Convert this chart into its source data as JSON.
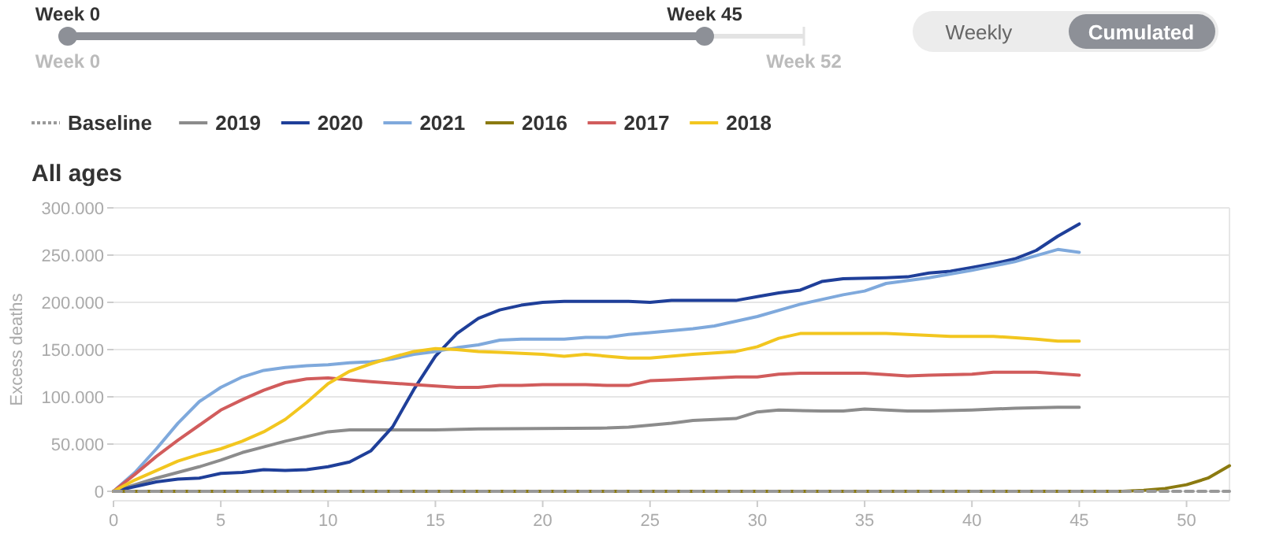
{
  "chart_data": {
    "type": "line",
    "title": "All ages",
    "ylabel": "Excess deaths",
    "annotations": [
      "Week 0",
      "Week 45",
      "Week 0",
      "Week 52",
      "Weekly",
      "Cumulated"
    ],
    "xlim": [
      0,
      52
    ],
    "xticks": [
      0,
      5,
      10,
      15,
      20,
      25,
      30,
      35,
      40,
      45,
      50
    ],
    "ylim": [
      0,
      300000
    ],
    "yticks": [
      {
        "value": 0,
        "label": "0"
      },
      {
        "value": 50000,
        "label": "50.000"
      },
      {
        "value": 100000,
        "label": "100.000"
      },
      {
        "value": 150000,
        "label": "150.000"
      },
      {
        "value": 200000,
        "label": "200.000"
      },
      {
        "value": 250000,
        "label": "250.000"
      },
      {
        "value": 300000,
        "label": "300.000"
      }
    ],
    "grid": "y",
    "legend": "top left",
    "marker": "none",
    "series": [
      {
        "name": "Baseline",
        "color": "#999999",
        "line_style": "dashed",
        "x": [
          0,
          52
        ],
        "values": [
          0,
          0
        ]
      },
      {
        "name": "2019",
        "color": "#8c8c8c",
        "x": [
          0,
          1,
          2,
          3,
          4,
          5,
          6,
          7,
          8,
          9,
          10,
          11,
          15,
          17,
          23,
          24,
          25,
          26,
          27,
          29,
          30,
          31,
          33,
          34,
          35,
          37,
          38,
          40,
          42,
          44,
          45
        ],
        "values": [
          0,
          7000,
          14000,
          20000,
          26000,
          33000,
          41000,
          47000,
          53000,
          58000,
          63000,
          65000,
          65000,
          66000,
          67000,
          68000,
          70000,
          72000,
          75000,
          77000,
          84000,
          86000,
          85000,
          85000,
          87000,
          85000,
          85000,
          86000,
          88000,
          89000,
          89000
        ]
      },
      {
        "name": "2020",
        "color": "#1f3f99",
        "x": [
          0,
          1,
          2,
          3,
          4,
          5,
          6,
          7,
          8,
          9,
          10,
          11,
          12,
          13,
          14,
          15,
          16,
          17,
          18,
          19,
          20,
          21,
          22,
          23,
          24,
          25,
          26,
          29,
          30,
          31,
          32,
          33,
          34,
          36,
          37,
          38,
          39,
          40,
          41,
          42,
          43,
          44,
          45
        ],
        "values": [
          0,
          5000,
          10000,
          13000,
          14000,
          19000,
          20000,
          23000,
          22000,
          23000,
          26000,
          31000,
          43000,
          68000,
          108000,
          143000,
          167000,
          183000,
          192000,
          197000,
          200000,
          201000,
          201000,
          201000,
          201000,
          200000,
          202000,
          202000,
          206000,
          210000,
          213000,
          222000,
          225000,
          226000,
          227000,
          231000,
          233000,
          237000,
          241000,
          246000,
          255000,
          270000,
          283000
        ]
      },
      {
        "name": "2021",
        "color": "#7fa9dc",
        "x": [
          0,
          1,
          2,
          3,
          4,
          5,
          6,
          7,
          8,
          9,
          10,
          11,
          12,
          13,
          14,
          15,
          16,
          17,
          18,
          19,
          21,
          22,
          23,
          24,
          25,
          27,
          28,
          29,
          30,
          32,
          34,
          35,
          36,
          38,
          40,
          42,
          44,
          45
        ],
        "values": [
          0,
          20000,
          45000,
          72000,
          95000,
          110000,
          121000,
          128000,
          131000,
          133000,
          134000,
          136000,
          137000,
          140000,
          145000,
          148000,
          152000,
          155000,
          160000,
          161000,
          161000,
          163000,
          163000,
          166000,
          168000,
          172000,
          175000,
          180000,
          185000,
          198000,
          208000,
          212000,
          220000,
          226000,
          234000,
          243000,
          256000,
          253000
        ]
      },
      {
        "name": "2016",
        "color": "#8b7a10",
        "x": [
          0,
          47,
          48,
          49,
          50,
          51,
          52
        ],
        "values": [
          0,
          0,
          1000,
          3000,
          7000,
          14000,
          27000
        ]
      },
      {
        "name": "2017",
        "color": "#d15c5c",
        "x": [
          0,
          1,
          2,
          3,
          4,
          5,
          6,
          7,
          8,
          9,
          10,
          11,
          12,
          14,
          16,
          17,
          18,
          19,
          20,
          22,
          23,
          24,
          25,
          26,
          28,
          29,
          30,
          31,
          32,
          35,
          37,
          38,
          40,
          41,
          43,
          45
        ],
        "values": [
          0,
          18000,
          37000,
          54000,
          70000,
          86000,
          97000,
          107000,
          115000,
          119000,
          120000,
          118000,
          116000,
          113000,
          110000,
          110000,
          112000,
          112000,
          113000,
          113000,
          112000,
          112000,
          117000,
          118000,
          120000,
          121000,
          121000,
          124000,
          125000,
          125000,
          122000,
          123000,
          124000,
          126000,
          126000,
          123000
        ]
      },
      {
        "name": "2018",
        "color": "#f2c61f",
        "x": [
          0,
          1,
          2,
          3,
          4,
          5,
          6,
          7,
          8,
          9,
          10,
          11,
          12,
          13,
          14,
          15,
          16,
          17,
          18,
          20,
          21,
          22,
          23,
          24,
          25,
          27,
          29,
          30,
          31,
          32,
          36,
          37,
          39,
          41,
          43,
          44,
          45
        ],
        "values": [
          0,
          12000,
          22000,
          32000,
          39000,
          45000,
          53000,
          63000,
          76000,
          94000,
          114000,
          127000,
          135000,
          142000,
          148000,
          151000,
          150000,
          148000,
          147000,
          145000,
          143000,
          145000,
          143000,
          141000,
          141000,
          145000,
          148000,
          153000,
          162000,
          167000,
          167000,
          166000,
          164000,
          164000,
          161000,
          159000,
          159000
        ]
      }
    ]
  }
}
